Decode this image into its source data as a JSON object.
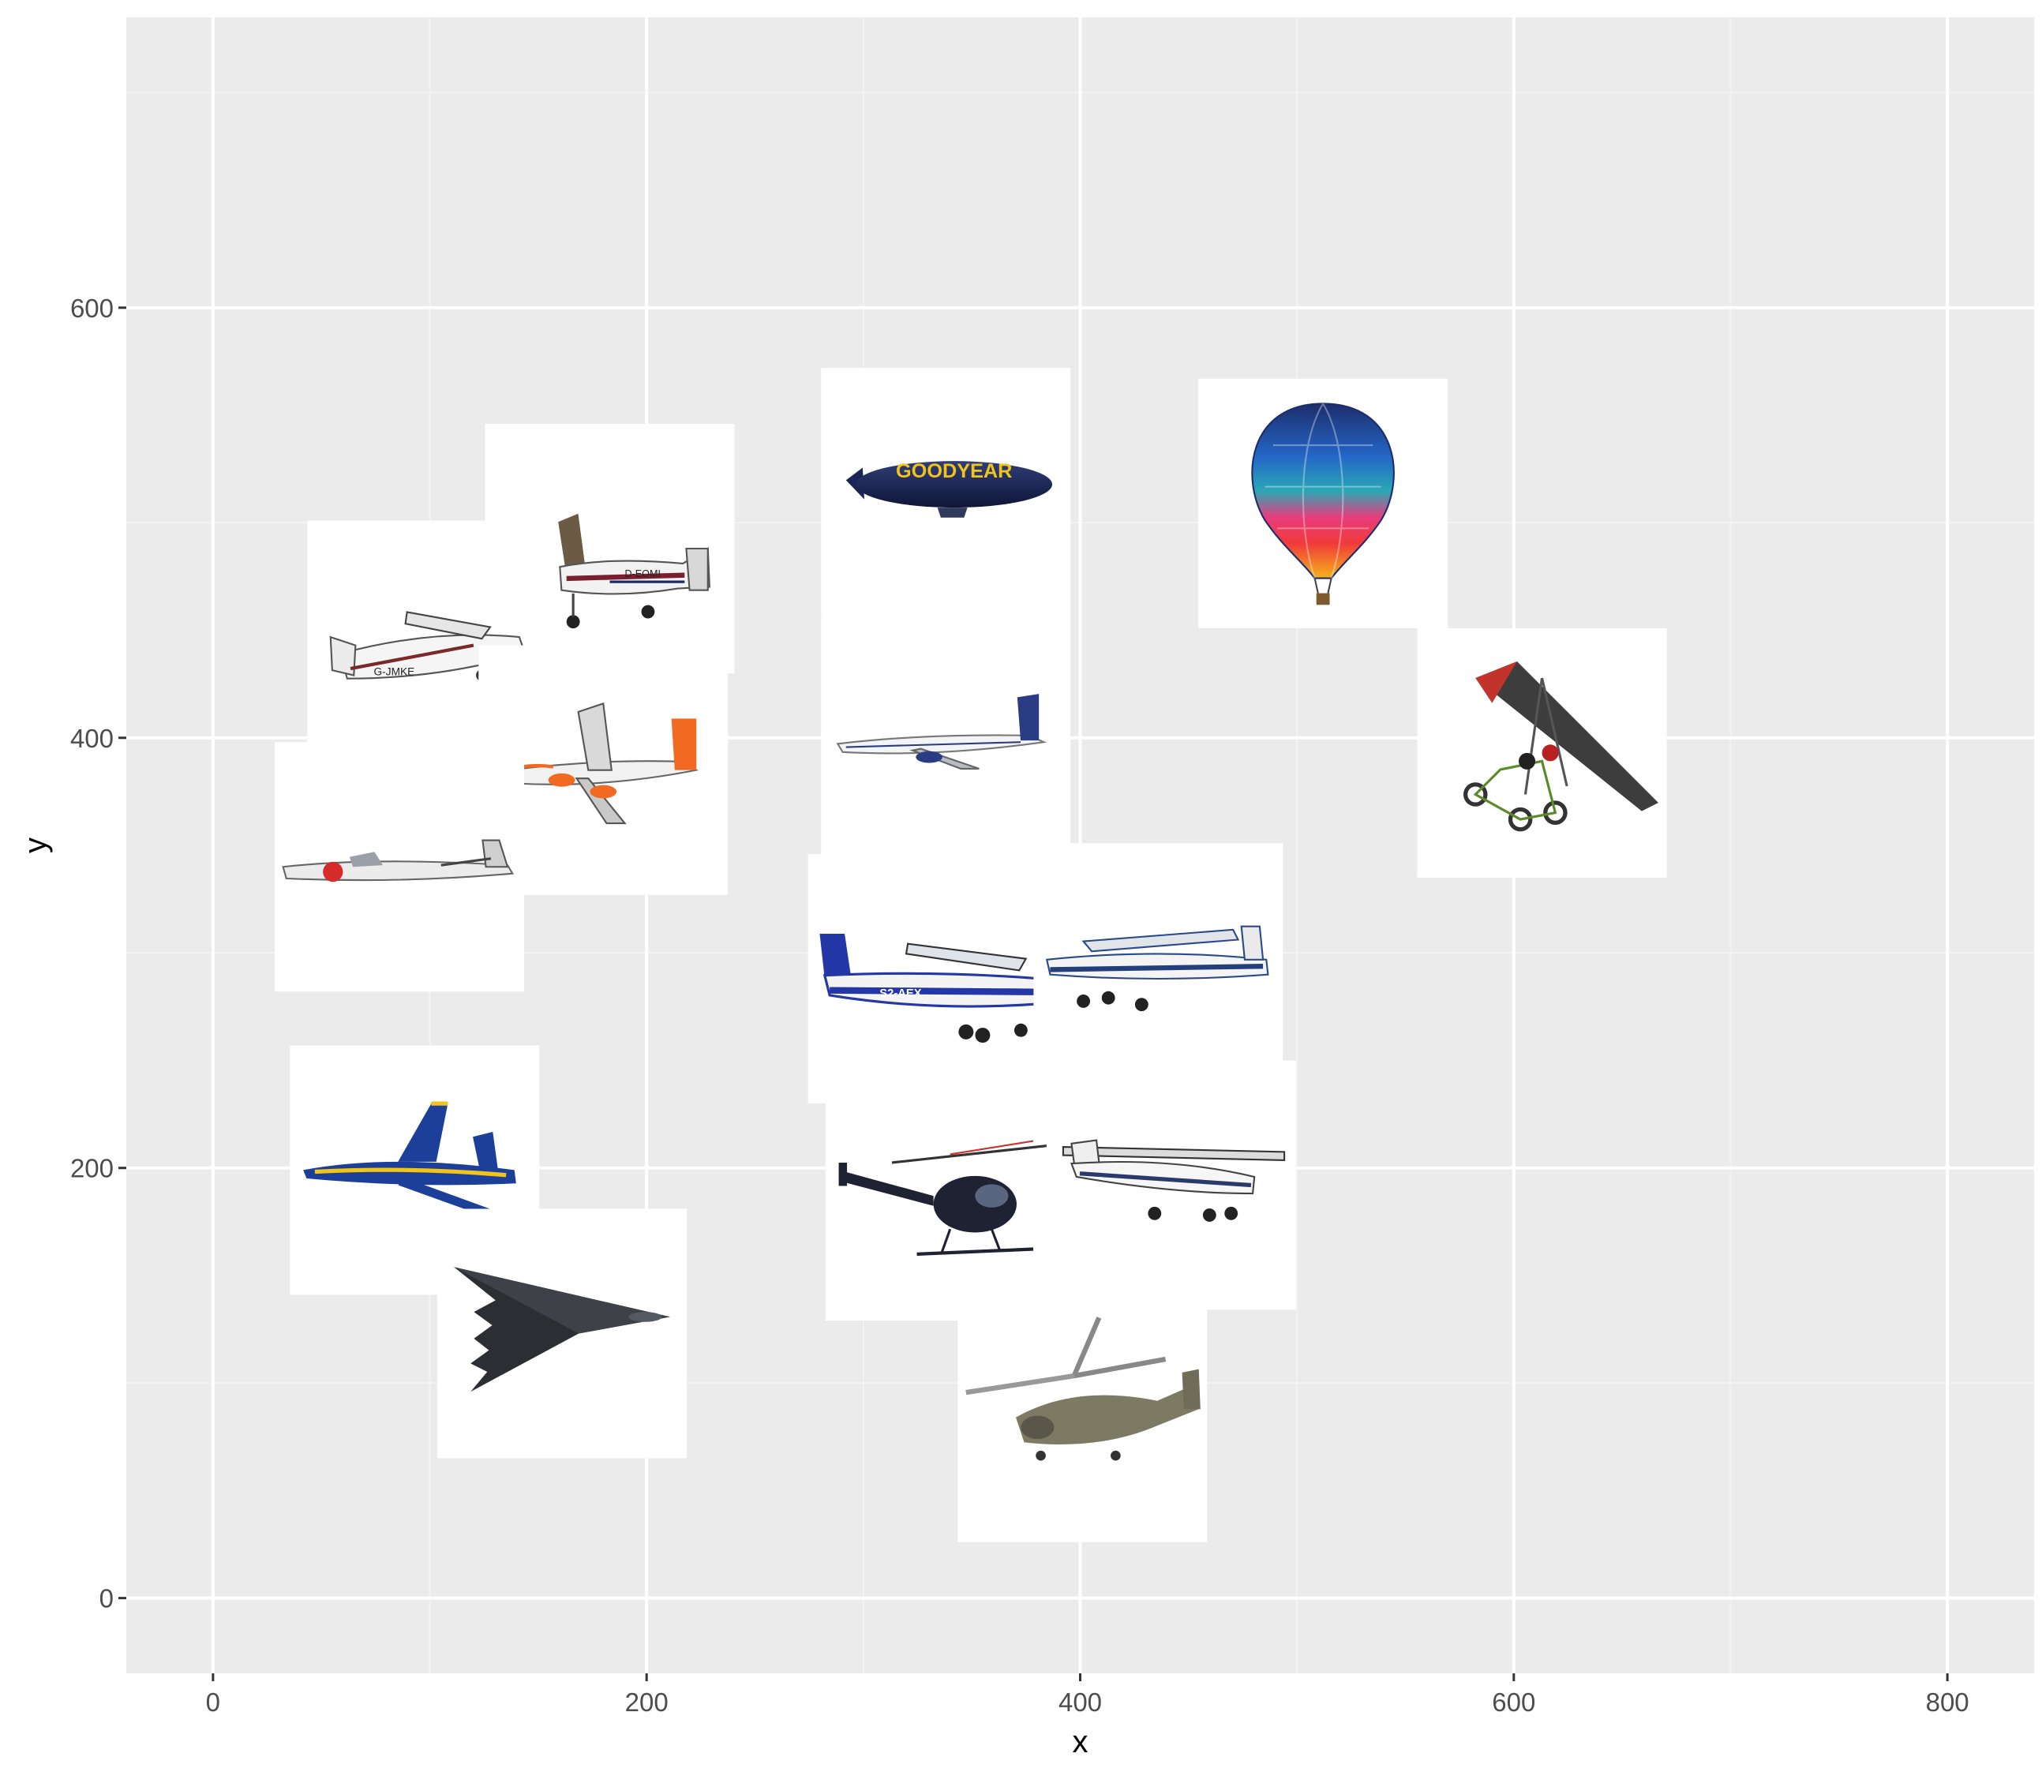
{
  "chart_data": {
    "type": "scatter",
    "title": "",
    "xlabel": "x",
    "ylabel": "y",
    "xlim": [
      -40,
      840
    ],
    "ylim": [
      -35,
      735
    ],
    "x_ticks": [
      0,
      200,
      400,
      600,
      800
    ],
    "y_ticks": [
      0,
      200,
      400,
      600
    ],
    "x_tick_labels": [
      "0",
      "200",
      "400",
      "600",
      "800"
    ],
    "y_tick_labels": [
      "0",
      "200",
      "400",
      "600"
    ],
    "grid": true,
    "legend": "none",
    "points": [
      {
        "x": 183,
        "y": 488,
        "icon": "cessna-d-eomi-icon"
      },
      {
        "x": 101,
        "y": 443,
        "icon": "cessna-g-jmke-icon"
      },
      {
        "x": 180,
        "y": 385,
        "icon": "airbus-easyjet-icon"
      },
      {
        "x": 86,
        "y": 340,
        "icon": "jet-trainer-icon"
      },
      {
        "x": 338,
        "y": 514,
        "icon": "goodyear-blimp-icon"
      },
      {
        "x": 338,
        "y": 398,
        "icon": "airliner-icon"
      },
      {
        "x": 512,
        "y": 509,
        "icon": "hot-air-balloon-icon"
      },
      {
        "x": 613,
        "y": 393,
        "icon": "microlight-trike-icon"
      },
      {
        "x": 332,
        "y": 288,
        "icon": "cessna-s2-aex-icon"
      },
      {
        "x": 436,
        "y": 293,
        "icon": "cessna-blue-stripe-icon"
      },
      {
        "x": 93,
        "y": 199,
        "icon": "fa18-blue-angels-icon"
      },
      {
        "x": 161,
        "y": 123,
        "icon": "b2-stealth-bomber-icon"
      },
      {
        "x": 340,
        "y": 187,
        "icon": "md500-helicopter-icon"
      },
      {
        "x": 442,
        "y": 192,
        "icon": "cessna-white-icon"
      },
      {
        "x": 401,
        "y": 84,
        "icon": "super-puma-helicopter-icon"
      }
    ]
  },
  "colors": {
    "panel": "#EBEBEB",
    "grid_major": "#FFFFFF",
    "grid_minor": "#F3F3F3",
    "tick_text": "#4D4D4D",
    "axis_title": "#000000"
  }
}
